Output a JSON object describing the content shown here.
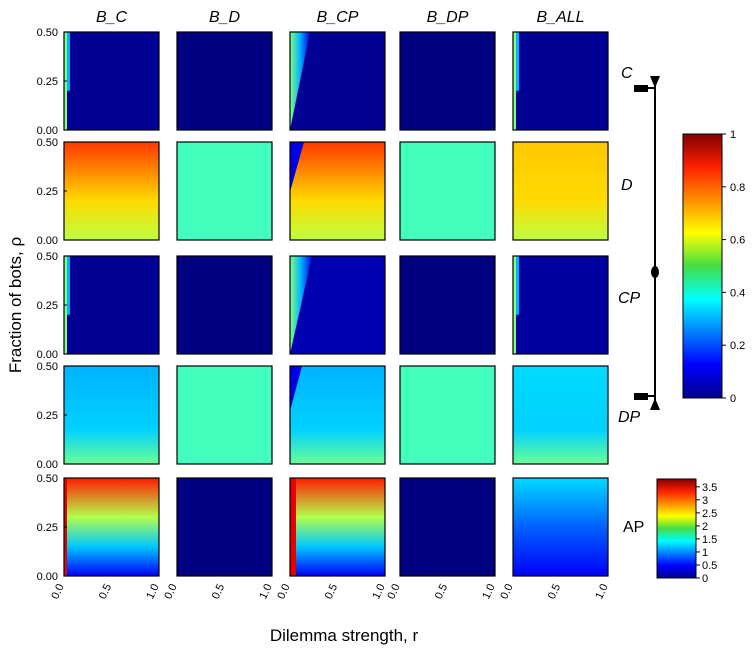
{
  "chart_data": {
    "type": "heatmap",
    "column_titles": [
      "B_C",
      "B_D",
      "B_CP",
      "B_DP",
      "B_ALL"
    ],
    "row_labels": [
      "C",
      "D",
      "CP",
      "DP",
      "AP"
    ],
    "xlabel": "Dilemma strength, r",
    "ylabel": "Fraction of bots, ρ",
    "x_range": [
      0,
      1
    ],
    "y_range": [
      0,
      0.5
    ],
    "x_ticks": [
      "0.0",
      "0.5",
      "1.0"
    ],
    "y_ticks": [
      "0.00",
      "0.25",
      "0.50"
    ],
    "colorbar_fraction": {
      "range": [
        0,
        1
      ],
      "ticks": [
        "0",
        "0.2",
        "0.4",
        "0.6",
        "0.8",
        "1"
      ]
    },
    "colorbar_ap": {
      "range": [
        0,
        3.8
      ],
      "ticks": [
        "0",
        "0.5",
        "1",
        "1.5",
        "2",
        "2.5",
        "3",
        "3.5"
      ]
    },
    "cell_levels": {
      "C": {
        "B_C": 0.02,
        "B_D": 0.0,
        "B_CP": 0.02,
        "B_DP": 0.0,
        "B_ALL": 0.02
      },
      "D": {
        "B_C": 0.78,
        "B_D": 0.44,
        "B_CP": 0.7,
        "B_DP": 0.44,
        "B_ALL": 0.62
      },
      "CP": {
        "B_C": 0.02,
        "B_D": 0.0,
        "B_CP": 0.05,
        "B_DP": 0.0,
        "B_ALL": 0.03
      },
      "DP": {
        "B_C": 0.27,
        "B_D": 0.44,
        "B_CP": 0.27,
        "B_DP": 0.44,
        "B_ALL": 0.3
      },
      "AP": {
        "B_C": 1.8,
        "B_D": 0.0,
        "B_CP": 1.8,
        "B_DP": 0.0,
        "B_ALL": 0.8
      }
    }
  }
}
